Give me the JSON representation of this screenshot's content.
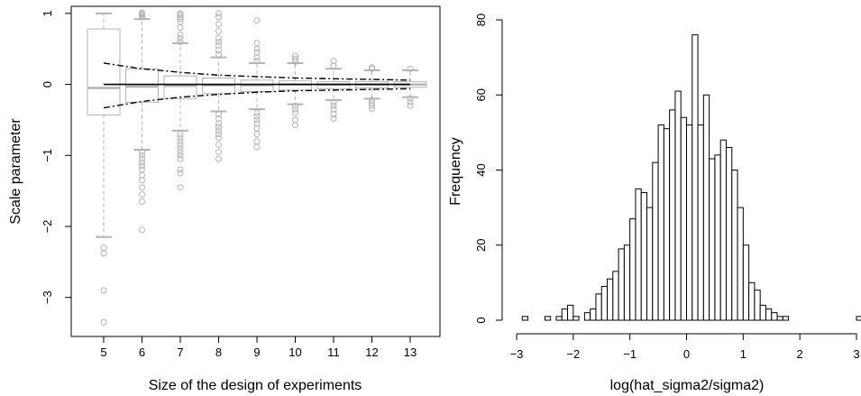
{
  "chart_data": [
    {
      "type": "boxplot",
      "xlabel": "Size of the design of experiments",
      "ylabel": "Scale parameter",
      "categories": [
        "5",
        "6",
        "7",
        "8",
        "9",
        "10",
        "11",
        "12",
        "13"
      ],
      "ylim": [
        -3.55,
        1.1
      ],
      "yticks": [
        -3,
        -2,
        -1,
        0,
        1
      ],
      "ytick_labels": [
        "−3",
        "−2",
        "−1",
        "0",
        "1"
      ],
      "boxes": [
        {
          "q1": -0.43,
          "median": -0.05,
          "q3": 0.78,
          "whisker_low": -2.15,
          "whisker_high": 1.0,
          "outliers_low": [
            -2.3,
            -2.38,
            -2.9,
            -3.35
          ],
          "outliers_high": []
        },
        {
          "q1": -0.25,
          "median": -0.03,
          "q3": 0.22,
          "whisker_low": -0.92,
          "whisker_high": 0.92,
          "outliers_low": [
            -0.95,
            -1.0,
            -1.05,
            -1.1,
            -1.15,
            -1.2,
            -1.28,
            -1.35,
            -1.45,
            -1.55,
            -1.65,
            -2.05
          ],
          "outliers_high": [
            0.95,
            0.97,
            0.99,
            1.0,
            1.01
          ]
        },
        {
          "q1": -0.2,
          "median": -0.02,
          "q3": 0.12,
          "whisker_low": -0.65,
          "whisker_high": 0.58,
          "outliers_low": [
            -0.7,
            -0.75,
            -0.8,
            -0.85,
            -0.9,
            -0.95,
            -1.0,
            -1.05,
            -1.2,
            -1.25,
            -1.45
          ],
          "outliers_high": [
            0.6,
            0.65,
            0.7,
            0.8,
            0.88,
            0.92,
            0.95,
            0.98,
            1.0
          ]
        },
        {
          "q1": -0.13,
          "median": -0.01,
          "q3": 0.09,
          "whisker_low": -0.38,
          "whisker_high": 0.38,
          "outliers_low": [
            -0.42,
            -0.48,
            -0.55,
            -0.6,
            -0.65,
            -0.7,
            -0.75,
            -0.85,
            -0.95,
            -1.05
          ],
          "outliers_high": [
            0.42,
            0.48,
            0.55,
            0.6,
            0.65,
            0.75,
            0.85,
            0.95,
            1.0
          ]
        },
        {
          "q1": -0.1,
          "median": -0.01,
          "q3": 0.06,
          "whisker_low": -0.35,
          "whisker_high": 0.3,
          "outliers_low": [
            -0.4,
            -0.45,
            -0.5,
            -0.55,
            -0.62,
            -0.7,
            -0.8,
            -0.88
          ],
          "outliers_high": [
            0.33,
            0.38,
            0.45,
            0.5,
            0.58,
            0.9
          ]
        },
        {
          "q1": -0.08,
          "median": 0.0,
          "q3": 0.05,
          "whisker_low": -0.28,
          "whisker_high": 0.3,
          "outliers_low": [
            -0.3,
            -0.35,
            -0.4,
            -0.5,
            -0.57
          ],
          "outliers_high": [
            0.32,
            0.36,
            0.4
          ]
        },
        {
          "q1": -0.06,
          "median": 0.0,
          "q3": 0.04,
          "whisker_low": -0.22,
          "whisker_high": 0.22,
          "outliers_low": [
            -0.25,
            -0.3,
            -0.35,
            -0.42,
            -0.48
          ],
          "outliers_high": [
            0.26,
            0.33
          ]
        },
        {
          "q1": -0.05,
          "median": 0.0,
          "q3": 0.04,
          "whisker_low": -0.2,
          "whisker_high": 0.2,
          "outliers_low": [
            -0.22,
            -0.26,
            -0.3,
            -0.34
          ],
          "outliers_high": [
            0.22,
            0.24
          ]
        },
        {
          "q1": -0.04,
          "median": 0.0,
          "q3": 0.04,
          "whisker_low": -0.18,
          "whisker_high": 0.2,
          "outliers_low": [
            -0.2,
            -0.25,
            -0.3
          ],
          "outliers_high": [
            0.22
          ]
        }
      ],
      "reference_line": {
        "y": 0
      },
      "dashdot_upper": [
        0.3,
        0.22,
        0.17,
        0.13,
        0.11,
        0.09,
        0.08,
        0.07,
        0.06
      ],
      "dashdot_lower": [
        -0.33,
        -0.24,
        -0.18,
        -0.14,
        -0.11,
        -0.09,
        -0.08,
        -0.07,
        -0.06
      ],
      "colors": {
        "box": "#b3b3b3",
        "line": "#000000",
        "frame": "#000000"
      }
    },
    {
      "type": "histogram",
      "xlabel": "log(hat_sigma2/sigma2)",
      "ylabel": "Frequency",
      "xlim": [
        -3.0,
        3.0
      ],
      "ylim": [
        0,
        80
      ],
      "xticks": [
        -3,
        -2,
        -1,
        0,
        1,
        2,
        3
      ],
      "xtick_labels": [
        "−3",
        "−2",
        "−1",
        "0",
        "1",
        "2",
        "3"
      ],
      "yticks": [
        0,
        20,
        40,
        60,
        80
      ],
      "bin_width": 0.1,
      "bins_start": -2.9,
      "counts": [
        1,
        0,
        0,
        0,
        1,
        0,
        1,
        3,
        4,
        1,
        0,
        2,
        3,
        7,
        9,
        11,
        13,
        19,
        20,
        27,
        35,
        34,
        30,
        42,
        52,
        51,
        56,
        61,
        54,
        52,
        76,
        52,
        60,
        43,
        44,
        48,
        46,
        40,
        30,
        20,
        10,
        8,
        4,
        3,
        2,
        1,
        1,
        0,
        0,
        0,
        0,
        0,
        0,
        0,
        0,
        0,
        0,
        0,
        0,
        1,
        0,
        1
      ],
      "colors": {
        "bar_fill": "#ffffff",
        "bar_stroke": "#000000"
      }
    }
  ]
}
